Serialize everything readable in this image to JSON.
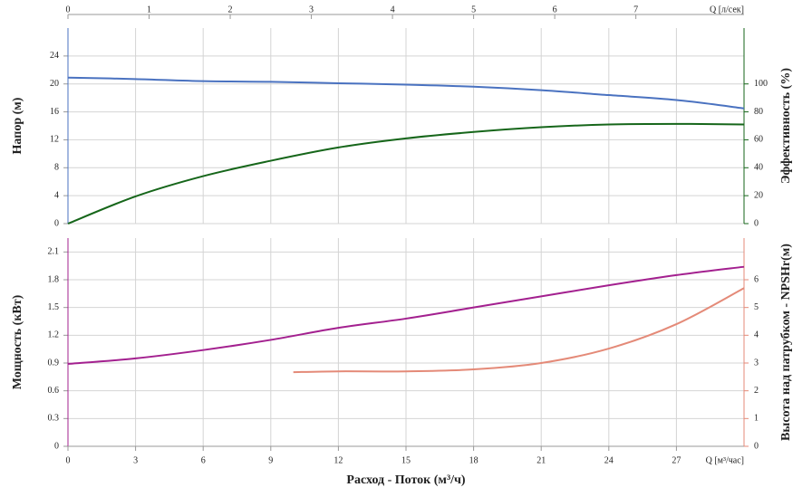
{
  "chart_data": [
    {
      "type": "line",
      "top_axis": {
        "label": "Q [л/сек]",
        "lim": [
          0,
          8.3333
        ],
        "ticks": [
          0,
          1,
          2,
          3,
          4,
          5,
          6,
          7
        ]
      },
      "xlim": [
        0,
        30
      ],
      "x": [
        0,
        3,
        6,
        9,
        12,
        15,
        18,
        21,
        24,
        27,
        30
      ],
      "ylabel": "Напор (м)",
      "ylim": [
        0,
        28
      ],
      "yticks": [
        0,
        4,
        8,
        12,
        16,
        20,
        24
      ],
      "y2label": "Эффективность (%)",
      "y2lim": [
        0,
        140
      ],
      "y2ticks": [
        0,
        20,
        40,
        60,
        80,
        100
      ],
      "grid": true,
      "series": [
        {
          "name": "Напор",
          "color": "#4a72c0",
          "axis": "y",
          "values": [
            20.9,
            20.7,
            20.4,
            20.3,
            20.1,
            19.9,
            19.6,
            19.1,
            18.4,
            17.7,
            16.5
          ]
        },
        {
          "name": "Эффективность",
          "color": "#16661a",
          "axis": "y2",
          "values": [
            0,
            19.5,
            34,
            45,
            54.5,
            61,
            65.6,
            69,
            71,
            71.4,
            71
          ]
        }
      ]
    },
    {
      "type": "line",
      "xlabel": "Расход - Поток (м³/ч)",
      "xunit": "Q [м³/час]",
      "xlim": [
        0,
        30
      ],
      "xticks": [
        0,
        3,
        6,
        9,
        12,
        15,
        18,
        21,
        24,
        27
      ],
      "x": [
        0,
        3,
        6,
        9,
        12,
        15,
        18,
        21,
        24,
        27,
        30
      ],
      "ylabel": "Мощность (кВт)",
      "ylim": [
        0,
        2.25
      ],
      "yticks": [
        0,
        0.3,
        0.6,
        0.9,
        1.2,
        1.5,
        1.8,
        2.1
      ],
      "y2label": "Высота над патрубком - NPSHr(м)",
      "y2lim": [
        0,
        7.5
      ],
      "y2ticks": [
        0,
        1,
        2,
        3,
        4,
        5,
        6
      ],
      "grid": true,
      "series": [
        {
          "name": "Мощность",
          "color": "#a3208f",
          "axis": "y",
          "values": [
            0.89,
            0.95,
            1.04,
            1.15,
            1.28,
            1.38,
            1.5,
            1.62,
            1.74,
            1.85,
            1.94
          ]
        },
        {
          "name": "NPSHr",
          "color": "#e48a78",
          "axis": "y2",
          "x": [
            10,
            12,
            15,
            18,
            21,
            24,
            27,
            30
          ],
          "values": [
            2.67,
            2.7,
            2.7,
            2.77,
            3.0,
            3.52,
            4.4,
            5.7
          ]
        }
      ]
    }
  ]
}
